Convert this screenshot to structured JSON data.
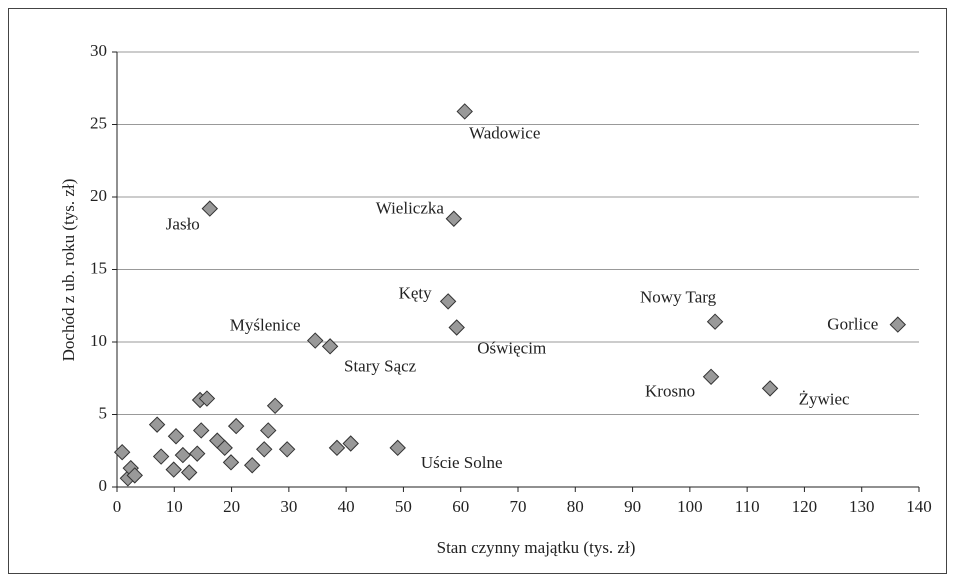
{
  "chart_data": {
    "type": "scatter",
    "xlabel": "Stan czynny majątku (tys. zł)",
    "ylabel": "Dochód z ub. roku (tys. zł)",
    "xlim": [
      0,
      140
    ],
    "xticks": [
      0,
      10,
      20,
      30,
      40,
      50,
      60,
      70,
      80,
      90,
      100,
      110,
      120,
      130,
      140
    ],
    "ylim": [
      0,
      30
    ],
    "yticks": [
      0,
      5,
      10,
      15,
      20,
      25,
      30
    ],
    "grid": true,
    "color": "#999999",
    "x": [
      0.9,
      1.9,
      2.4,
      3.1,
      7.0,
      7.7,
      10.3,
      9.9,
      11.5,
      12.6,
      14.0,
      14.7,
      14.5,
      15.7,
      17.5,
      18.8,
      19.9,
      20.8,
      23.6,
      25.7,
      26.4,
      27.6,
      29.7,
      38.4,
      40.8,
      16.2,
      60.7,
      58.8,
      57.8,
      59.3,
      34.6,
      37.2,
      49.0,
      104.4,
      103.7,
      114.0,
      136.3
    ],
    "values": [
      2.4,
      0.6,
      1.3,
      0.8,
      4.3,
      2.1,
      3.5,
      1.2,
      2.2,
      1.0,
      2.3,
      3.9,
      6.0,
      6.1,
      3.2,
      2.7,
      1.7,
      4.2,
      1.5,
      2.6,
      3.9,
      5.6,
      2.6,
      2.7,
      3.0,
      19.2,
      25.9,
      18.5,
      12.8,
      11.0,
      10.1,
      9.7,
      2.7,
      11.4,
      7.6,
      6.8,
      11.2
    ],
    "point_labels": [
      null,
      null,
      null,
      null,
      null,
      null,
      null,
      null,
      null,
      null,
      null,
      null,
      null,
      null,
      null,
      null,
      null,
      null,
      null,
      null,
      null,
      null,
      null,
      null,
      null,
      "Jasło",
      "Wadowice",
      "Wieliczka",
      "Kęty",
      "Oświęcim",
      "Myślenice",
      "Stary Sącz",
      "Uście Solne",
      "Nowy Targ",
      "Krosno",
      "Żywiec",
      "Gorlice"
    ]
  }
}
